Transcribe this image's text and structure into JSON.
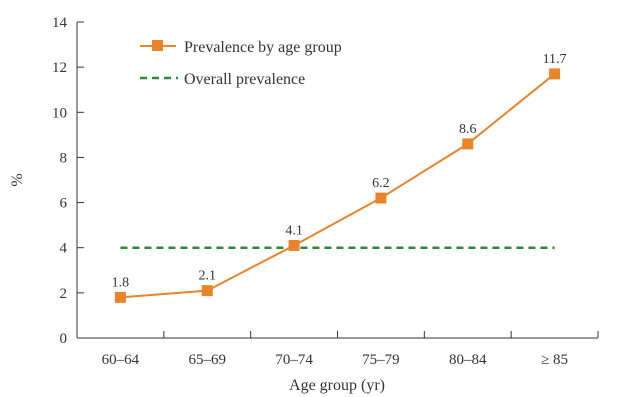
{
  "chart_data": {
    "type": "line",
    "categories": [
      "60–64",
      "65–69",
      "70–74",
      "75–79",
      "80–84",
      "≥ 85"
    ],
    "series": [
      {
        "name": "Prevalence by age group",
        "values": [
          1.8,
          2.1,
          4.1,
          6.2,
          8.6,
          11.7
        ],
        "color": "#e8842a",
        "marker": "square",
        "data_labels": [
          "1.8",
          "2.1",
          "4.1",
          "6.2",
          "8.6",
          "11.7"
        ]
      },
      {
        "name": "Overall prevalence",
        "values": [
          4.0,
          4.0,
          4.0,
          4.0,
          4.0,
          4.0
        ],
        "color": "#2a8a3a",
        "style": "dashed"
      }
    ],
    "xlabel": "Age group (yr)",
    "ylabel": "%",
    "ylim": [
      0,
      14
    ],
    "yticks": [
      "0",
      "2",
      "4",
      "6",
      "8",
      "10",
      "12",
      "14"
    ],
    "grid": false,
    "legend_position": "top-left"
  }
}
